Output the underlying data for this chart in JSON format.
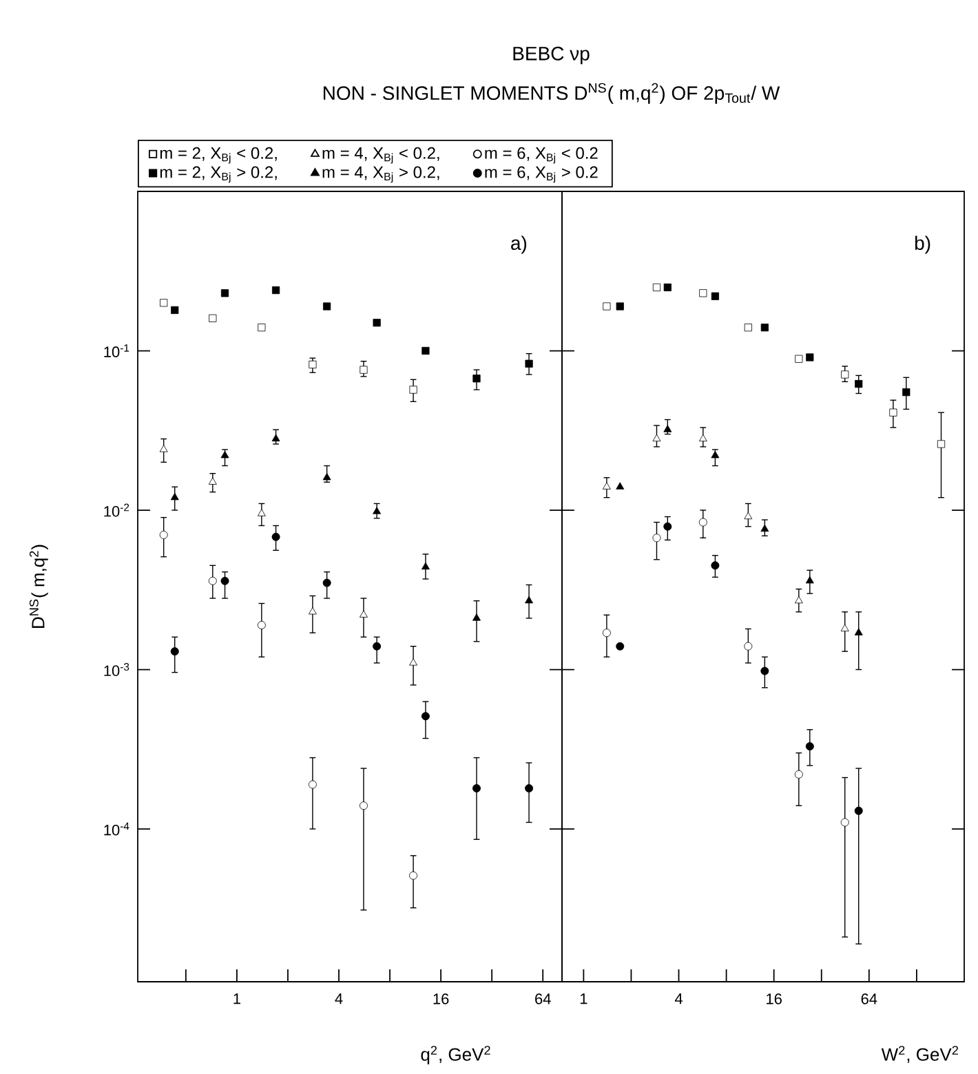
{
  "chart_data": [
    {
      "type": "scatter",
      "title": "BEBC νp",
      "subtitle": "NON - SINGLET MOMENTS D$^{NS}$( m,q$^{2}$) OF 2p$_{Tout}$/ W",
      "xlabel": "q$^{2}$, GeV$^{2}$",
      "ylabel": "D$^{NS}$( m,q$^{2}$)",
      "annotations": [
        "a)"
      ],
      "log": "xy",
      "legend": "top",
      "xlim": [
        0.26,
        83
      ],
      "ylim": [
        1.1e-05,
        1
      ],
      "xticks": [
        {
          "value": 0.5,
          "label": null
        },
        1,
        {
          "value": 2,
          "label": null
        },
        4,
        {
          "value": 8,
          "label": null
        },
        16,
        {
          "value": 32,
          "label": null
        },
        64
      ],
      "yticks": [
        {
          "value": 0.1,
          "label": "10$^{-1}$"
        },
        {
          "value": 0.01,
          "label": "10$^{-2}$"
        },
        {
          "value": 0.001,
          "label": "10$^{-3}$"
        },
        {
          "value": 0.0001,
          "label": "10$^{-4}$"
        }
      ],
      "series": [
        {
          "name": "m = 2, X$_{Bj}$ < 0.2,",
          "color": "#ffffff",
          "marker": "square",
          "x": [
            0.37,
            0.72,
            1.4,
            2.8,
            5.6,
            11
          ],
          "values": [
            0.2,
            0.16,
            0.14,
            0.082,
            0.076,
            0.057
          ],
          "errors": [
            null,
            null,
            null,
            [
              0.073,
              0.09
            ],
            [
              0.069,
              0.086
            ],
            [
              0.048,
              0.066
            ]
          ]
        },
        {
          "name": "m = 4, X$_{Bj}$ < 0.2,",
          "color": "#ffffff",
          "marker": "triangle",
          "x": [
            0.37,
            0.72,
            1.4,
            2.8,
            5.6,
            11
          ],
          "values": [
            0.024,
            0.015,
            0.0095,
            0.0023,
            0.0022,
            0.0011
          ],
          "errors": [
            [
              0.02,
              0.028
            ],
            [
              0.013,
              0.017
            ],
            [
              0.008,
              0.011
            ],
            [
              0.0017,
              0.0029
            ],
            [
              0.0016,
              0.0028
            ],
            [
              0.0008,
              0.0014
            ]
          ]
        },
        {
          "name": "m = 6, X$_{Bj}$ < 0.2",
          "color": "#ffffff",
          "marker": "circle",
          "x": [
            0.37,
            0.72,
            1.4,
            2.8,
            5.6,
            11
          ],
          "values": [
            0.007,
            0.0036,
            0.0019,
            0.00019,
            0.00014,
            5.1e-05
          ],
          "errors": [
            [
              0.0051,
              0.009
            ],
            [
              0.0028,
              0.0045
            ],
            [
              0.0012,
              0.0026
            ],
            [
              0.0001,
              0.00028
            ],
            [
              3.1e-05,
              0.00024
            ],
            [
              3.2e-05,
              6.8e-05
            ]
          ]
        },
        {
          "name": "m = 2, X$_{Bj}$ > 0.2,",
          "color": "#000000",
          "marker": "square",
          "x": [
            0.43,
            0.85,
            1.7,
            3.4,
            6.7,
            13,
            26,
            53
          ],
          "values": [
            0.18,
            0.23,
            0.24,
            0.19,
            0.15,
            0.1,
            0.067,
            0.083
          ],
          "errors": [
            null,
            null,
            null,
            null,
            null,
            null,
            [
              0.057,
              0.076
            ],
            [
              0.071,
              0.096
            ]
          ]
        },
        {
          "name": "m = 4, X$_{Bj}$ > 0.2,",
          "color": "#000000",
          "marker": "triangle",
          "x": [
            0.43,
            0.85,
            1.7,
            3.4,
            6.7,
            13,
            26,
            53
          ],
          "values": [
            0.012,
            0.022,
            0.028,
            0.016,
            0.0098,
            0.0044,
            0.0021,
            0.0027
          ],
          "errors": [
            [
              0.01,
              0.014
            ],
            [
              0.019,
              0.024
            ],
            [
              0.026,
              0.032
            ],
            [
              0.015,
              0.019
            ],
            [
              0.0089,
              0.011
            ],
            [
              0.0037,
              0.0053
            ],
            [
              0.0015,
              0.0027
            ],
            [
              0.0021,
              0.0034
            ]
          ]
        },
        {
          "name": "m = 6, X$_{Bj}$ > 0.2",
          "color": "#000000",
          "marker": "circle",
          "x": [
            0.43,
            0.85,
            1.7,
            3.4,
            6.7,
            13,
            26,
            53
          ],
          "values": [
            0.0013,
            0.0036,
            0.0068,
            0.0035,
            0.0014,
            0.00051,
            0.00018,
            0.00018
          ],
          "errors": [
            [
              0.00096,
              0.0016
            ],
            [
              0.0028,
              0.0041
            ],
            [
              0.0056,
              0.008
            ],
            [
              0.0028,
              0.0041
            ],
            [
              0.0011,
              0.0016
            ],
            [
              0.00037,
              0.00063
            ],
            [
              8.6e-05,
              0.00028
            ],
            [
              0.00011,
              0.00026
            ]
          ]
        }
      ]
    },
    {
      "type": "scatter",
      "xlabel": "W$^{2}$, GeV$^{2}$",
      "annotations": [
        "b)"
      ],
      "log": "xy",
      "tick_labels": "x",
      "xlim": [
        0.73,
        256
      ],
      "ylim": [
        1.1e-05,
        1
      ],
      "xticks": [
        1,
        {
          "value": 2,
          "label": null
        },
        4,
        {
          "value": 8,
          "label": null
        },
        16,
        {
          "value": 32,
          "label": null
        },
        64,
        {
          "value": 128,
          "label": null
        }
      ],
      "yticks": [
        0.1,
        0.01,
        0.001,
        0.0001
      ],
      "series": [
        {
          "color": "#ffffff",
          "marker": "square",
          "x": [
            1.4,
            2.9,
            5.7,
            11,
            23,
            45,
            91,
            183
          ],
          "values": [
            0.19,
            0.25,
            0.23,
            0.14,
            0.089,
            0.071,
            0.041,
            0.026
          ],
          "errors": [
            null,
            null,
            null,
            null,
            null,
            [
              0.064,
              0.08
            ],
            [
              0.033,
              0.049
            ],
            [
              0.012,
              0.041
            ]
          ]
        },
        {
          "color": "#ffffff",
          "marker": "triangle",
          "x": [
            1.4,
            2.9,
            5.7,
            11,
            23,
            45
          ],
          "values": [
            0.014,
            0.028,
            0.028,
            0.0091,
            0.0027,
            0.0018
          ],
          "errors": [
            [
              0.012,
              0.016
            ],
            [
              0.025,
              0.034
            ],
            [
              0.025,
              0.033
            ],
            [
              0.0079,
              0.011
            ],
            [
              0.0023,
              0.0032
            ],
            [
              0.0013,
              0.0023
            ]
          ]
        },
        {
          "color": "#ffffff",
          "marker": "circle",
          "x": [
            1.4,
            2.9,
            5.7,
            11,
            23,
            45
          ],
          "values": [
            0.0017,
            0.0067,
            0.0084,
            0.0014,
            0.00022,
            0.00011
          ],
          "errors": [
            [
              0.0012,
              0.0022
            ],
            [
              0.0049,
              0.0084
            ],
            [
              0.0067,
              0.01
            ],
            [
              0.0011,
              0.0018
            ],
            [
              0.00014,
              0.0003
            ],
            [
              2.1e-05,
              0.00021
            ]
          ]
        },
        {
          "color": "#000000",
          "marker": "square",
          "x": [
            1.7,
            3.4,
            6.8,
            14,
            27,
            55,
            110
          ],
          "values": [
            0.19,
            0.25,
            0.22,
            0.14,
            0.091,
            0.062,
            0.055
          ],
          "errors": [
            null,
            null,
            null,
            null,
            null,
            [
              0.054,
              0.07
            ],
            [
              0.043,
              0.068
            ]
          ]
        },
        {
          "color": "#000000",
          "marker": "triangle",
          "x": [
            1.7,
            3.4,
            6.8,
            14,
            27,
            55
          ],
          "values": [
            0.014,
            0.032,
            0.022,
            0.0076,
            0.0036,
            0.0017
          ],
          "errors": [
            null,
            [
              0.03,
              0.037
            ],
            [
              0.019,
              0.024
            ],
            [
              0.0069,
              0.0087
            ],
            [
              0.003,
              0.0042
            ],
            [
              0.001,
              0.0023
            ]
          ]
        },
        {
          "color": "#000000",
          "marker": "circle",
          "x": [
            1.7,
            3.4,
            6.8,
            14,
            27,
            55
          ],
          "values": [
            0.0014,
            0.0079,
            0.0045,
            0.00098,
            0.00033,
            0.00013
          ],
          "errors": [
            null,
            [
              0.0065,
              0.0091
            ],
            [
              0.0038,
              0.0052
            ],
            [
              0.00077,
              0.0012
            ],
            [
              0.00025,
              0.00042
            ],
            [
              1.9e-05,
              0.00024
            ]
          ]
        }
      ]
    }
  ]
}
